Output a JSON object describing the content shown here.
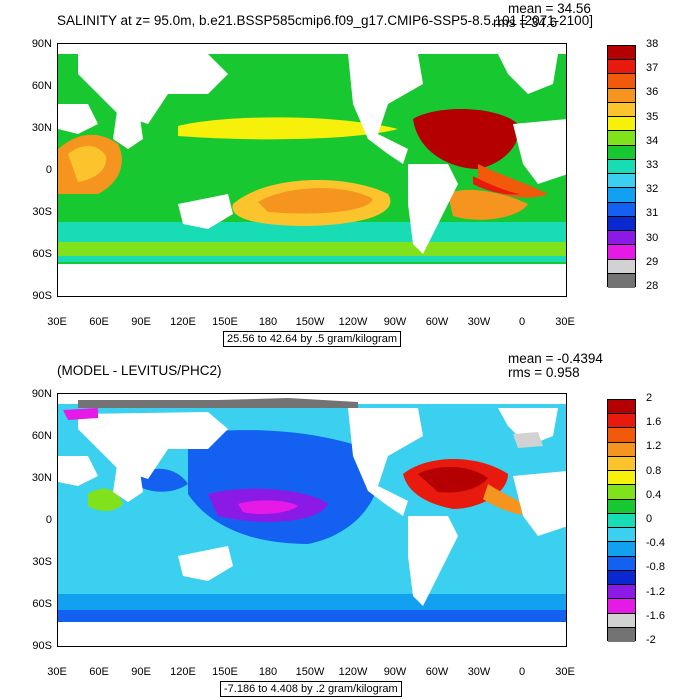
{
  "panels": [
    {
      "title": "SALINITY at z=  95.0m, b.e21.BSSP585cmip6.f09_g17.CMIP6-SSP5-8.5.101 [2071-2100]",
      "mean_label": "mean = 34.56",
      "rms_label": "rms = 34.6",
      "range_label": "25.56 to 42.64 by .5 gram/kilogram",
      "lat_labels": [
        "90N",
        "60N",
        "30N",
        "0",
        "30S",
        "60S",
        "90S"
      ],
      "lon_labels": [
        "30E",
        "60E",
        "90E",
        "120E",
        "150E",
        "180",
        "150W",
        "120W",
        "90W",
        "60W",
        "30W",
        "0",
        "30E"
      ],
      "colorbar": {
        "labels": [
          "38",
          "37",
          "36",
          "35",
          "34",
          "33",
          "32",
          "31",
          "30",
          "29",
          "28"
        ],
        "colors": [
          "#b40000",
          "#e81a0e",
          "#f05a0a",
          "#f5951f",
          "#fcc42c",
          "#f7f00a",
          "#7fe21a",
          "#18c830",
          "#18dcb4",
          "#3cd0f0",
          "#12a0f0",
          "#1460f0",
          "#0a28d0",
          "#8c1ae6",
          "#e61ae6",
          "#d2d2d2",
          "#737373"
        ]
      }
    },
    {
      "title": "(MODEL - LEVITUS/PHC2)",
      "mean_label": "mean = -0.4394",
      "rms_label": "rms = 0.958",
      "range_label": "-7.186 to 4.408 by .2 gram/kilogram",
      "lat_labels": [
        "90N",
        "60N",
        "30N",
        "0",
        "30S",
        "60S",
        "90S"
      ],
      "lon_labels": [
        "30E",
        "60E",
        "90E",
        "120E",
        "150E",
        "180",
        "150W",
        "120W",
        "90W",
        "60W",
        "30W",
        "0",
        "30E"
      ],
      "colorbar": {
        "labels": [
          "2",
          "1.6",
          "1.2",
          "0.8",
          "0.4",
          "0",
          "-0.4",
          "-0.8",
          "-1.2",
          "-1.6",
          "-2"
        ],
        "colors": [
          "#b40000",
          "#e81a0e",
          "#f05a0a",
          "#f5951f",
          "#fcc42c",
          "#f7f00a",
          "#7fe21a",
          "#18c830",
          "#18dcb4",
          "#3cd0f0",
          "#12a0f0",
          "#1460f0",
          "#0a28d0",
          "#8c1ae6",
          "#e61ae6",
          "#d2d2d2",
          "#737373"
        ]
      }
    }
  ]
}
